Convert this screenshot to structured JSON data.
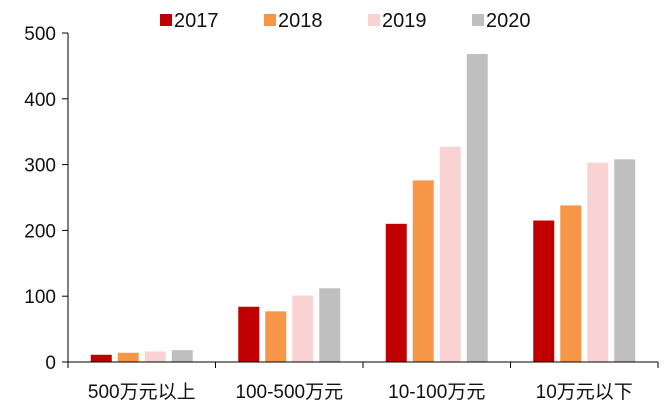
{
  "chart_data": {
    "type": "bar",
    "title": "",
    "xlabel": "",
    "ylabel": "",
    "ylim": [
      0,
      500
    ],
    "yticks": [
      0,
      100,
      200,
      300,
      400,
      500
    ],
    "grid": false,
    "legend_position": "top",
    "categories": [
      "500万元以上",
      "100-500万元",
      "10-100万元",
      "10万元以下"
    ],
    "series": [
      {
        "name": "2017",
        "color": "#C00000",
        "values": [
          11,
          84,
          210,
          215
        ]
      },
      {
        "name": "2018",
        "color": "#F79646",
        "values": [
          14,
          77,
          276,
          238
        ]
      },
      {
        "name": "2019",
        "color": "#F9D3D3",
        "values": [
          16,
          101,
          327,
          303
        ]
      },
      {
        "name": "2020",
        "color": "#BFBFBF",
        "values": [
          18,
          112,
          468,
          308
        ]
      }
    ]
  }
}
